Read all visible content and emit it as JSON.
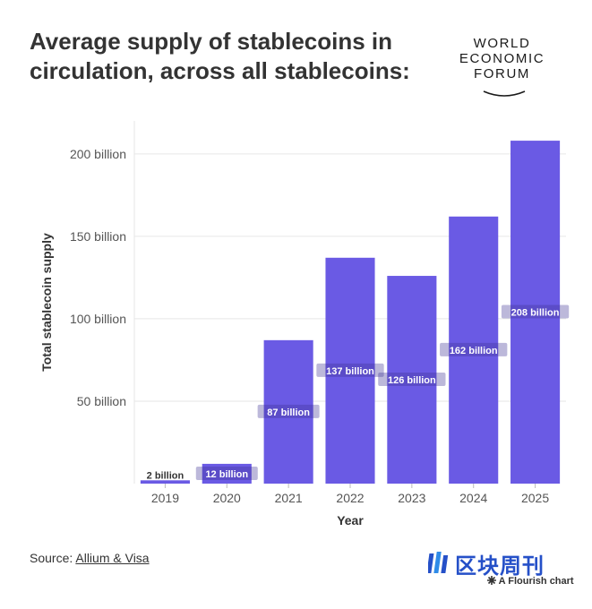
{
  "title": "Average supply of stablecoins in circulation, across all stablecoins:",
  "logo": {
    "lines": [
      "WORLD",
      "ECONOMIC",
      "FORUM"
    ]
  },
  "source": {
    "label": "Source:",
    "link_text": "Allium & Visa"
  },
  "watermark": {
    "text": "区块周刊"
  },
  "credit": {
    "text": "A Flourish chart"
  },
  "colors": {
    "bar": "#6a5ae4",
    "label_bg": "#3e3494",
    "grid": "#e6e6e6",
    "axis_text": "#555555"
  },
  "chart_data": {
    "type": "bar",
    "xlabel": "Year",
    "ylabel": "Total stablecoin supply",
    "categories": [
      "2019",
      "2020",
      "2021",
      "2022",
      "2023",
      "2024",
      "2025"
    ],
    "values": [
      2,
      12,
      87,
      137,
      126,
      162,
      208
    ],
    "value_labels": [
      "2 billion",
      "12 billion",
      "87 billion",
      "137 billion",
      "126 billion",
      "162 billion",
      "208 billion"
    ],
    "yticks": [
      50,
      100,
      150,
      200
    ],
    "ytick_labels": [
      "50 billion",
      "100 billion",
      "150 billion",
      "200 billion"
    ],
    "ylim": [
      0,
      220
    ],
    "unit": "billion"
  }
}
